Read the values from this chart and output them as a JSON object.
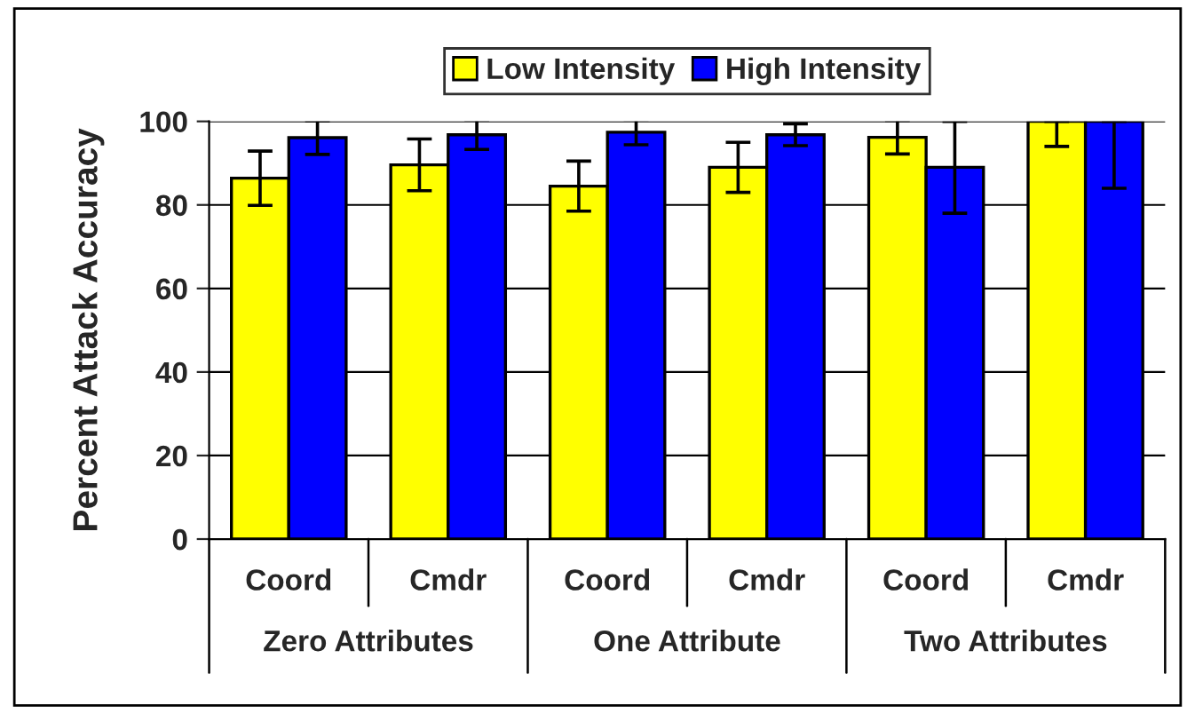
{
  "chart_data": {
    "type": "bar",
    "ylabel": "Percent Attack Accuracy",
    "categories": [
      "Coord",
      "Cmdr",
      "Coord",
      "Cmdr",
      "Coord",
      "Cmdr"
    ],
    "annotations": [
      "Zero Attributes",
      "One Attribute",
      "Two Attributes"
    ],
    "series": [
      {
        "name": "Low Intensity",
        "color": "#ffff00",
        "values": [
          86.4,
          89.6,
          84.5,
          89,
          96.2,
          100
        ],
        "errors": [
          6.5,
          6.2,
          6,
          6,
          4,
          [
            94,
            100
          ]
        ]
      },
      {
        "name": "High Intensity",
        "color": "#0000ff",
        "values": [
          96.1,
          96.8,
          97.4,
          96.8,
          89,
          100
        ],
        "errors": [
          4,
          3.5,
          3,
          2.6,
          11,
          [
            84,
            100
          ]
        ]
      }
    ],
    "ylim": [
      0,
      100
    ],
    "yticks": [
      0,
      20,
      40,
      60,
      80,
      100
    ],
    "grid": "y",
    "legend": "top"
  }
}
